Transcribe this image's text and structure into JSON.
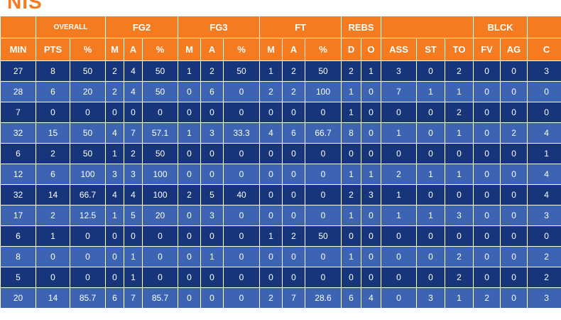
{
  "title": "NIS",
  "groups": [
    "",
    "OVERALL",
    "FG2",
    "FG3",
    "FT",
    "REBS",
    "",
    "BLCK",
    ""
  ],
  "columns": [
    "MIN",
    "PTS",
    "%",
    "M",
    "A",
    "%",
    "M",
    "A",
    "%",
    "M",
    "A",
    "%",
    "D",
    "O",
    "ASS",
    "ST",
    "TO",
    "FV",
    "AG",
    "C"
  ],
  "rows": [
    [
      "27",
      "8",
      "50",
      "2",
      "4",
      "50",
      "1",
      "2",
      "50",
      "1",
      "2",
      "50",
      "2",
      "1",
      "3",
      "0",
      "2",
      "0",
      "0",
      "3"
    ],
    [
      "28",
      "6",
      "20",
      "2",
      "4",
      "50",
      "0",
      "6",
      "0",
      "2",
      "2",
      "100",
      "1",
      "0",
      "7",
      "1",
      "1",
      "0",
      "0",
      "0"
    ],
    [
      "7",
      "0",
      "0",
      "0",
      "0",
      "0",
      "0",
      "0",
      "0",
      "0",
      "0",
      "0",
      "1",
      "0",
      "0",
      "0",
      "2",
      "0",
      "0",
      "0"
    ],
    [
      "32",
      "15",
      "50",
      "4",
      "7",
      "57.1",
      "1",
      "3",
      "33.3",
      "4",
      "6",
      "66.7",
      "8",
      "0",
      "1",
      "0",
      "1",
      "0",
      "2",
      "4"
    ],
    [
      "6",
      "2",
      "50",
      "1",
      "2",
      "50",
      "0",
      "0",
      "0",
      "0",
      "0",
      "0",
      "0",
      "0",
      "0",
      "0",
      "0",
      "0",
      "0",
      "1"
    ],
    [
      "12",
      "6",
      "100",
      "3",
      "3",
      "100",
      "0",
      "0",
      "0",
      "0",
      "0",
      "0",
      "1",
      "1",
      "2",
      "1",
      "1",
      "0",
      "0",
      "4"
    ],
    [
      "32",
      "14",
      "66.7",
      "4",
      "4",
      "100",
      "2",
      "5",
      "40",
      "0",
      "0",
      "0",
      "2",
      "3",
      "1",
      "0",
      "0",
      "0",
      "0",
      "4"
    ],
    [
      "17",
      "2",
      "12.5",
      "1",
      "5",
      "20",
      "0",
      "3",
      "0",
      "0",
      "0",
      "0",
      "1",
      "0",
      "1",
      "1",
      "3",
      "0",
      "0",
      "3"
    ],
    [
      "6",
      "1",
      "0",
      "0",
      "0",
      "0",
      "0",
      "0",
      "0",
      "1",
      "2",
      "50",
      "0",
      "0",
      "0",
      "0",
      "0",
      "0",
      "0",
      "0"
    ],
    [
      "8",
      "0",
      "0",
      "0",
      "1",
      "0",
      "0",
      "1",
      "0",
      "0",
      "0",
      "0",
      "1",
      "0",
      "0",
      "0",
      "2",
      "0",
      "0",
      "2"
    ],
    [
      "5",
      "0",
      "0",
      "0",
      "1",
      "0",
      "0",
      "0",
      "0",
      "0",
      "0",
      "0",
      "0",
      "0",
      "0",
      "0",
      "2",
      "0",
      "0",
      "2"
    ],
    [
      "20",
      "14",
      "85.7",
      "6",
      "7",
      "85.7",
      "0",
      "0",
      "0",
      "2",
      "7",
      "28.6",
      "6",
      "4",
      "0",
      "3",
      "1",
      "2",
      "0",
      "3"
    ]
  ],
  "colors": {
    "header": "#f47b20",
    "row_dark": "#17357a",
    "row_light": "#3c64b3",
    "text": "#ffffff"
  }
}
